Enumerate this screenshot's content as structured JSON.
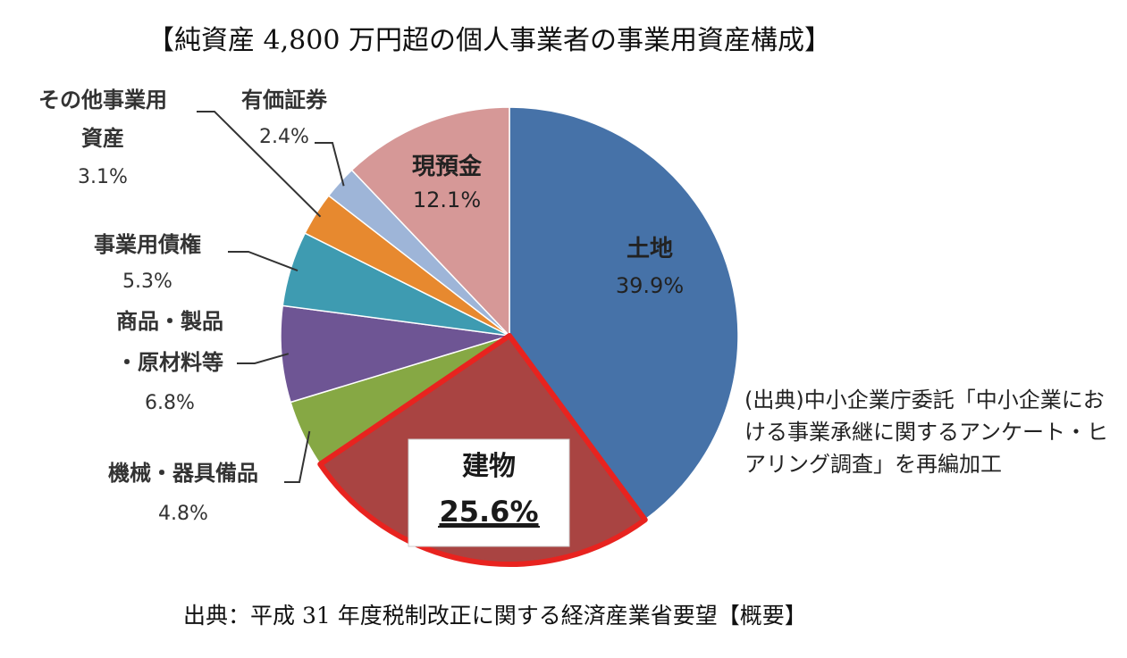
{
  "page_title": "【純資産 4,800 万円超の個人事業者の事業用資産構成】",
  "footer_text": "出典：平成 31 年度税制改正に関する経済産業省要望【概要】",
  "source_note": "(出典)中小企業庁委託「中小企業における事業承継に関するアンケート・ヒアリング調査」を再編加工",
  "chart_data": {
    "type": "pie",
    "start_angle_deg": 0,
    "direction": "clockwise",
    "highlighted": "建物",
    "slices": [
      {
        "label": "土地",
        "value": 39.9,
        "value_text": "39.9%",
        "color": "#4672a8"
      },
      {
        "label": "建物",
        "value": 25.6,
        "value_text": "25.6%",
        "color": "#a94442"
      },
      {
        "label": "機械・器具備品",
        "value": 4.8,
        "value_text": "4.8%",
        "color": "#86a844"
      },
      {
        "label": "商品・製品・原材料等",
        "value": 6.8,
        "value_text": "6.8%",
        "color": "#6e5594"
      },
      {
        "label": "事業用債権",
        "value": 5.3,
        "value_text": "5.3%",
        "color": "#3e9bb1"
      },
      {
        "label": "その他事業用資産",
        "value": 3.1,
        "value_text": "3.1%",
        "color": "#e7892f"
      },
      {
        "label": "有価証券",
        "value": 2.4,
        "value_text": "2.4%",
        "color": "#9eb5d8"
      },
      {
        "label": "現預金",
        "value": 12.1,
        "value_text": "12.1%",
        "color": "#d69897"
      }
    ]
  }
}
